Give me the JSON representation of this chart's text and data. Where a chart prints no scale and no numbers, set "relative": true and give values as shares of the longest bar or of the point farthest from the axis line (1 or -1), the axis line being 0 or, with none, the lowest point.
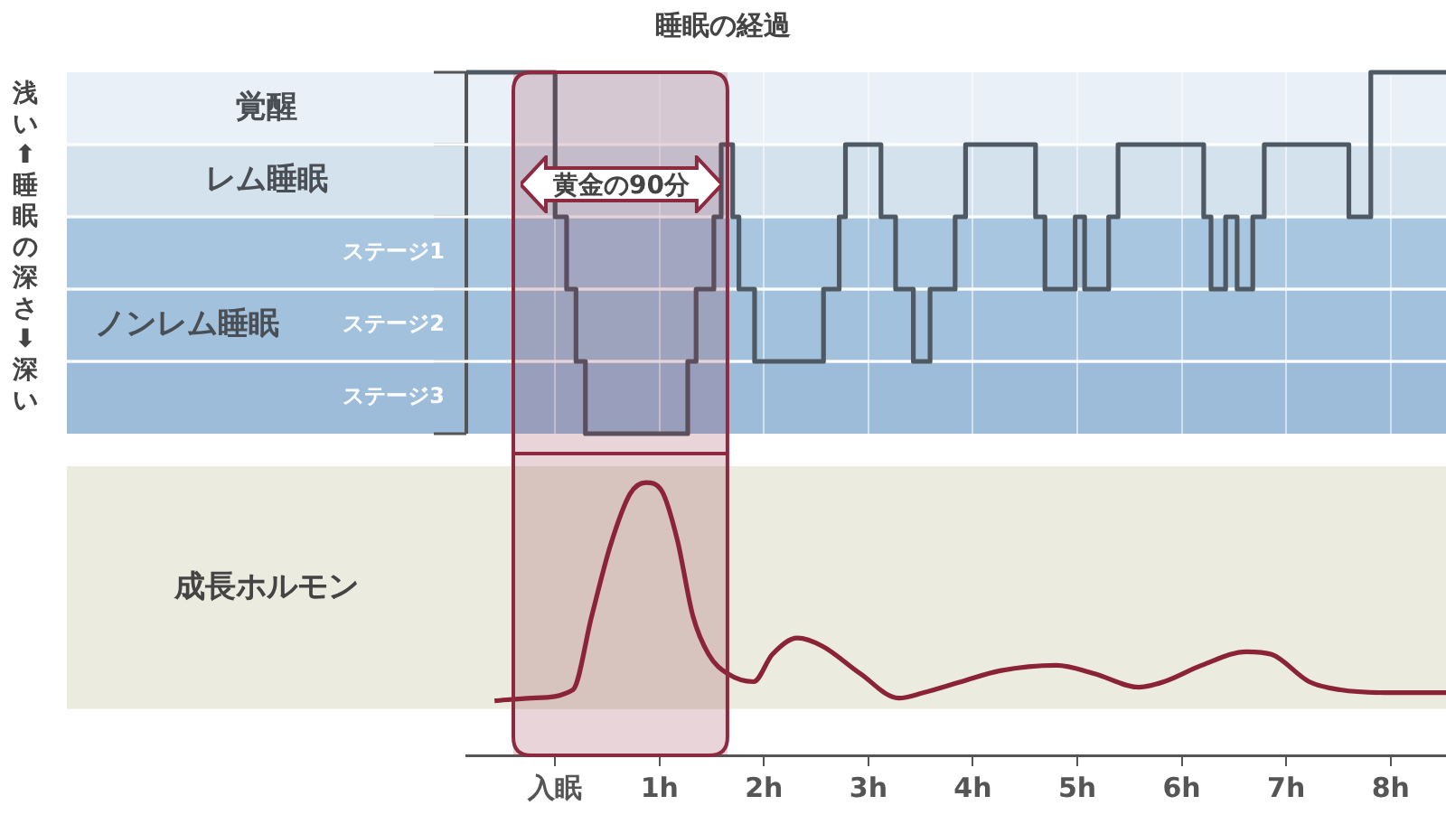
{
  "chart_data": [
    {
      "type": "step",
      "title": "睡眠の経過",
      "ylabel": "浅い⬆睡眠の深さ⬇深い",
      "relative": true,
      "xlim": [
        -0.85,
        8.53
      ],
      "xticks": [
        {
          "value": 0,
          "label": null
        },
        {
          "value": 1,
          "label": null
        },
        {
          "value": 2,
          "label": null
        },
        {
          "value": 3,
          "label": null
        },
        {
          "value": 4,
          "label": null
        },
        {
          "value": 5,
          "label": null
        },
        {
          "value": 6,
          "label": null
        },
        {
          "value": 7,
          "label": null
        },
        {
          "value": 8,
          "label": null
        }
      ],
      "series": [
        {
          "color": "#4f5964",
          "x": [
            -0.85,
            0,
            0.11,
            0.2,
            0.29,
            1.27,
            1.35,
            1.52,
            1.59,
            1.7,
            1.76,
            1.91,
            2.57,
            2.72,
            2.78,
            3.12,
            3.26,
            3.43,
            3.59,
            3.83,
            3.93,
            4.6,
            4.69,
            4.98,
            5.07,
            5.3,
            5.39,
            6.21,
            6.28,
            6.42,
            6.53,
            6.68,
            6.79,
            7.6,
            7.81,
            8.53
          ],
          "values": [
            1,
            0.6,
            0.4,
            0.2,
            0,
            0.2,
            0.4,
            0.6,
            0.8,
            0.6,
            0.4,
            0.2,
            0.4,
            0.6,
            0.8,
            0.6,
            0.4,
            0.2,
            0.4,
            0.6,
            0.8,
            0.6,
            0.4,
            0.6,
            0.4,
            0.6,
            0.8,
            0.6,
            0.4,
            0.6,
            0.4,
            0.6,
            0.8,
            0.6,
            1,
            1
          ]
        }
      ],
      "bands": [
        {
          "axis": "y",
          "from": 0.8,
          "to": 1,
          "label": "覚醒",
          "color": "#e9f0f7"
        },
        {
          "axis": "y",
          "from": 0.6,
          "to": 0.8,
          "label": "レム睡眠",
          "color": "#d4e2ee"
        },
        {
          "axis": "y",
          "from": 0.4,
          "to": 0.6,
          "label": "ステージ1",
          "color": "#a8c6e0"
        },
        {
          "axis": "y",
          "from": 0.2,
          "to": 0.4,
          "label": "ステージ2",
          "color": "#a2c1dd"
        },
        {
          "axis": "y",
          "from": 0,
          "to": 0.2,
          "label": "ステージ3",
          "color": "#9cbcda"
        },
        {
          "axis": "x",
          "from": -0.4,
          "to": 1.65,
          "label": "黄金の90分",
          "color": "#8e2a40"
        }
      ],
      "annotations": [
        "ノンレム睡眠"
      ],
      "grid": "x",
      "legend": false,
      "tick_labels": false
    },
    {
      "type": "line",
      "ylabel": "成長ホルモン",
      "relative": true,
      "xlim": [
        -0.85,
        8.53
      ],
      "xticks": [
        {
          "value": 0,
          "label": "入眠"
        },
        {
          "value": 1,
          "label": "1h"
        },
        {
          "value": 2,
          "label": "2h"
        },
        {
          "value": 3,
          "label": "3h"
        },
        {
          "value": 4,
          "label": "4h"
        },
        {
          "value": 5,
          "label": "5h"
        },
        {
          "value": 6,
          "label": "6h"
        },
        {
          "value": 7,
          "label": "7h"
        },
        {
          "value": 8,
          "label": "8h"
        }
      ],
      "series": [
        {
          "color": "#8b2336",
          "x": [
            -0.58,
            -0.22,
            0.17,
            0.35,
            0.53,
            0.72,
            0.87,
            1.02,
            1.17,
            1.32,
            1.47,
            1.65,
            1.9,
            2.08,
            2.32,
            2.56,
            2.92,
            3.29,
            3.53,
            3.89,
            4.26,
            4.8,
            5.16,
            5.59,
            5.83,
            6.19,
            6.62,
            6.86,
            7.22,
            7.52,
            7.95,
            8.53
          ],
          "values": [
            0.2,
            0.21,
            0.24,
            0.51,
            0.77,
            0.96,
            1,
            0.97,
            0.79,
            0.51,
            0.37,
            0.3,
            0.27,
            0.37,
            0.43,
            0.4,
            0.3,
            0.21,
            0.23,
            0.27,
            0.31,
            0.33,
            0.3,
            0.25,
            0.27,
            0.33,
            0.38,
            0.37,
            0.27,
            0.24,
            0.23,
            0.23
          ]
        }
      ],
      "bands": [
        {
          "axis": "y",
          "from": 0.17,
          "to": 1.06,
          "color": "#ecebdf"
        },
        {
          "axis": "x",
          "from": -0.4,
          "to": 1.65,
          "color": "#8e2a40"
        }
      ],
      "grid": false,
      "legend": false,
      "tick_labels": "x"
    }
  ]
}
